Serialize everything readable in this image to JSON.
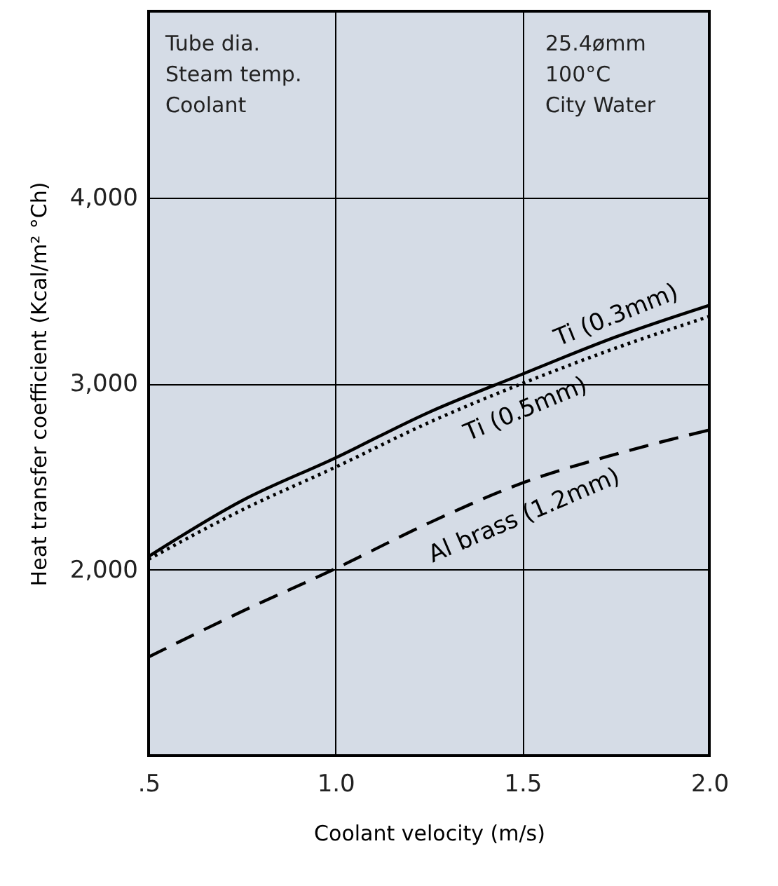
{
  "chart_data": {
    "type": "line",
    "xlabel": "Coolant velocity (m/s)",
    "ylabel": "Heat transfer coefficient (Kcal/m² °Ch)",
    "x": [
      0.5,
      0.75,
      1.0,
      1.25,
      1.5,
      1.75,
      2.0
    ],
    "series": [
      {
        "name": "Ti (0.3mm)",
        "color": "#000000",
        "line_style": "solid",
        "values": [
          2070,
          2370,
          2600,
          2845,
          3050,
          3250,
          3420
        ]
      },
      {
        "name": "Ti (0.5mm)",
        "color": "#000000",
        "line_style": "dotted",
        "values": [
          2055,
          2320,
          2550,
          2790,
          3000,
          3190,
          3360
        ]
      },
      {
        "name": "Al brass (1.2mm)",
        "color": "#000000",
        "line_style": "dashed",
        "values": [
          1530,
          1775,
          2005,
          2250,
          2465,
          2620,
          2750
        ]
      }
    ],
    "xlim": [
      0.5,
      2.0
    ],
    "xticks": [
      {
        "value": 0.5,
        "label": ".5"
      },
      {
        "value": 1.0,
        "label": "1.0"
      },
      {
        "value": 1.5,
        "label": "1.5"
      },
      {
        "value": 2.0,
        "label": "2.0"
      }
    ],
    "ylim": [
      1000,
      5000
    ],
    "yticks": [
      {
        "value": 2000,
        "label": "2,000"
      },
      {
        "value": 3000,
        "label": "3,000"
      },
      {
        "value": 4000,
        "label": "4,000"
      }
    ],
    "annotations": [
      "Tube dia.",
      "Steam temp.",
      "Coolant",
      "25.4ømm",
      "100°C",
      "City Water"
    ],
    "grid": true,
    "marker": "none"
  }
}
